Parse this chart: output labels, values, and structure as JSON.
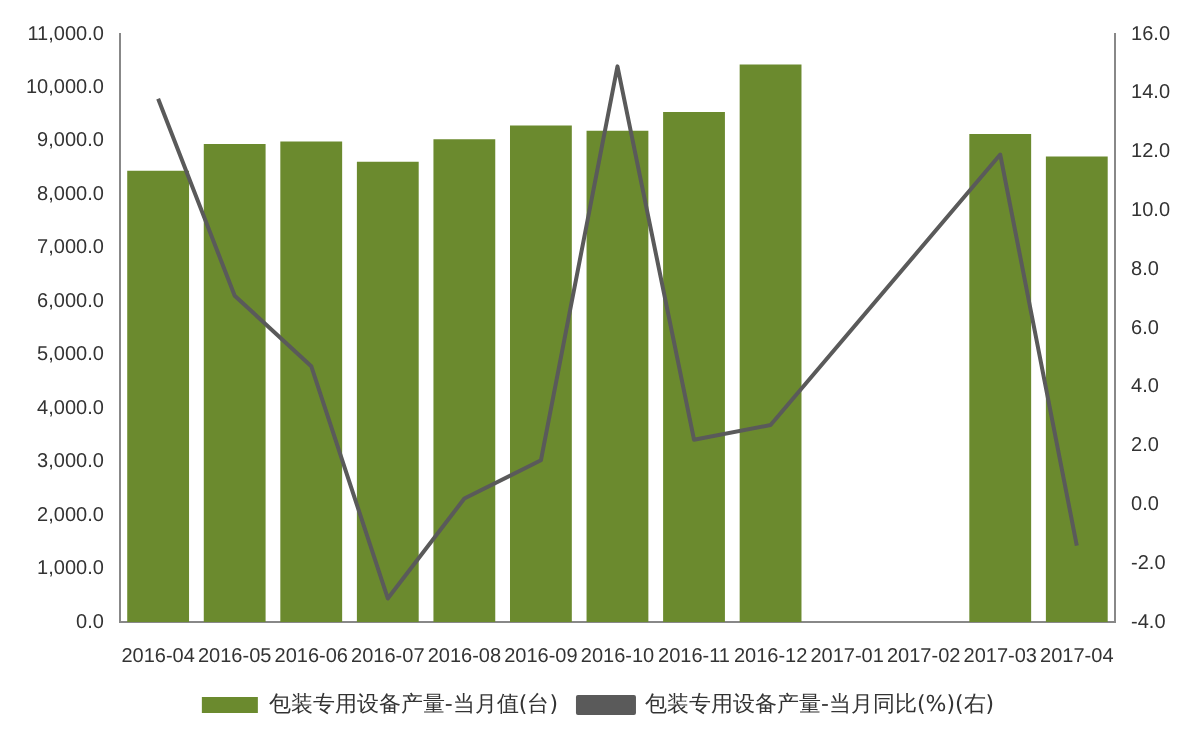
{
  "chart_data": {
    "type": "bar",
    "categories": [
      "2016-04",
      "2016-05",
      "2016-06",
      "2016-07",
      "2016-08",
      "2016-09",
      "2016-10",
      "2016-11",
      "2016-12",
      "2017-01",
      "2017-02",
      "2017-03",
      "2017-04"
    ],
    "series": [
      {
        "name": "包装专用设备产量-当月值(台)",
        "color": "#6b8a2e",
        "values": [
          8440,
          8940,
          8990,
          8610,
          9030,
          9290,
          9190,
          9540,
          10430,
          null,
          null,
          9130,
          8710
        ]
      },
      {
        "name": "包装专用设备产量-当月同比(%)(右)",
        "type": "line",
        "axis": "y2",
        "color": "#5a5a5a",
        "values": [
          13.8,
          7.1,
          4.7,
          -3.2,
          0.2,
          1.5,
          14.9,
          2.2,
          2.7,
          null,
          null,
          11.9,
          -1.4
        ]
      }
    ],
    "ylim": [
      0,
      11000
    ],
    "yticks": [
      {
        "value": 0,
        "label": "0.0"
      },
      {
        "value": 1000,
        "label": "1,000.0"
      },
      {
        "value": 2000,
        "label": "2,000.0"
      },
      {
        "value": 3000,
        "label": "3,000.0"
      },
      {
        "value": 4000,
        "label": "4,000.0"
      },
      {
        "value": 5000,
        "label": "5,000.0"
      },
      {
        "value": 6000,
        "label": "6,000.0"
      },
      {
        "value": 7000,
        "label": "7,000.0"
      },
      {
        "value": 8000,
        "label": "8,000.0"
      },
      {
        "value": 9000,
        "label": "9,000.0"
      },
      {
        "value": 10000,
        "label": "10,000.0"
      },
      {
        "value": 11000,
        "label": "11,000.0"
      }
    ],
    "y2lim": [
      -4,
      16
    ],
    "y2ticks": [
      {
        "value": -4,
        "label": "-4.0"
      },
      {
        "value": -2,
        "label": "-2.0"
      },
      {
        "value": 0,
        "label": "0.0"
      },
      {
        "value": 2,
        "label": "2.0"
      },
      {
        "value": 4,
        "label": "4.0"
      },
      {
        "value": 6,
        "label": "6.0"
      },
      {
        "value": 8,
        "label": "8.0"
      },
      {
        "value": 10,
        "label": "10.0"
      },
      {
        "value": 12,
        "label": "12.0"
      },
      {
        "value": 14,
        "label": "14.0"
      },
      {
        "value": 16,
        "label": "16.0"
      }
    ],
    "grid": false,
    "legend": "bottom",
    "marker": "none",
    "line_style": "solid"
  }
}
